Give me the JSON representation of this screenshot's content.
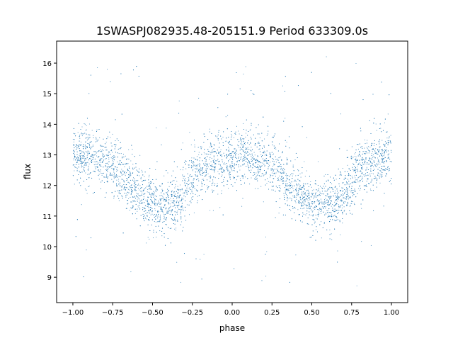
{
  "chart_data": {
    "type": "scatter",
    "title": "1SWASPJ082935.48-205151.9 Period 633309.0s",
    "xlabel": "phase",
    "ylabel": "flux",
    "xlim": [
      -1.102,
      1.102
    ],
    "ylim": [
      8.17,
      16.72
    ],
    "xticks": [
      -1.0,
      -0.75,
      -0.5,
      -0.25,
      0.0,
      0.25,
      0.5,
      0.75,
      1.0
    ],
    "xtick_labels": [
      "−1.00",
      "−0.75",
      "−0.50",
      "−0.25",
      "0.00",
      "0.25",
      "0.50",
      "0.75",
      "1.00"
    ],
    "yticks": [
      9,
      10,
      11,
      12,
      13,
      14,
      15,
      16
    ],
    "ytick_labels": [
      "9",
      "10",
      "11",
      "12",
      "13",
      "14",
      "15",
      "16"
    ],
    "grid": false,
    "color": "#1f77b4",
    "description_of_points": "dense scatter of ~6000 points, phase-folded light curve repeating every 1.0 in phase",
    "trend_phase": [
      0,
      0.05,
      0.1,
      0.15,
      0.2,
      0.25,
      0.3,
      0.35,
      0.4,
      0.45,
      0.5,
      0.55,
      0.6,
      0.65,
      0.7,
      0.75,
      0.8,
      0.85,
      0.9,
      0.95,
      1.0
    ],
    "trend_flux": [
      12.9,
      13.0,
      13.0,
      12.9,
      12.8,
      12.7,
      12.4,
      12.1,
      11.8,
      11.6,
      11.4,
      11.3,
      11.4,
      11.5,
      11.7,
      12.2,
      12.6,
      12.7,
      12.8,
      12.9,
      12.9
    ],
    "scatter_sigma": 0.45,
    "outlier_range": [
      8.7,
      16.4
    ],
    "point_count": 6000
  }
}
